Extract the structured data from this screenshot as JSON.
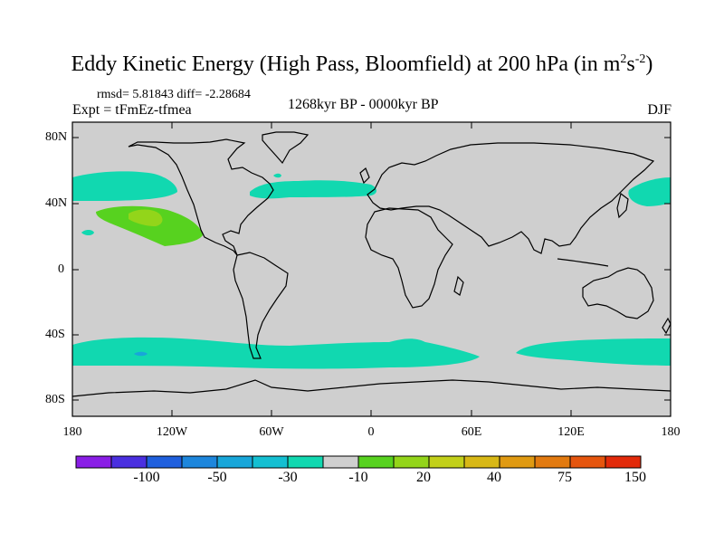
{
  "title": {
    "main": "Eddy Kinetic Energy (High Pass, Bloomfield) at 200 hPa (in m",
    "sup1": "2",
    "s": "s",
    "sup2": "-2",
    "close": ")"
  },
  "subtitle": {
    "stats": "rmsd= 5.81843 diff= -2.28684",
    "expt": "Expt = tFmEz-tfmea",
    "period": "1268kyr BP - 0000kyr BP",
    "season": "DJF"
  },
  "axes": {
    "y_labels": [
      "80N",
      "40N",
      "0",
      "40S",
      "80S"
    ],
    "x_labels": [
      "180",
      "120W",
      "60W",
      "0",
      "60E",
      "120E",
      "180"
    ]
  },
  "colorbar": {
    "colors": [
      "#8a1ee6",
      "#4a2fe0",
      "#1f5fdd",
      "#1d86dc",
      "#18a6d9",
      "#14bfd2",
      "#11d8b0",
      "#cfcfcf",
      "#57d21f",
      "#93d51a",
      "#c2d01a",
      "#d8b816",
      "#e09a12",
      "#e27a10",
      "#e5550e",
      "#e22a0a"
    ],
    "labels": [
      "-100",
      "-50",
      "-30",
      "-10",
      "20",
      "40",
      "75",
      "150"
    ]
  },
  "map": {
    "colors": {
      "land_ocean_bg": "#cfcfcf",
      "low_teal": "#11d8b0",
      "mid_green": "#57d21f",
      "high_green": "#93d51a",
      "blue_spot": "#18a6d9"
    }
  }
}
